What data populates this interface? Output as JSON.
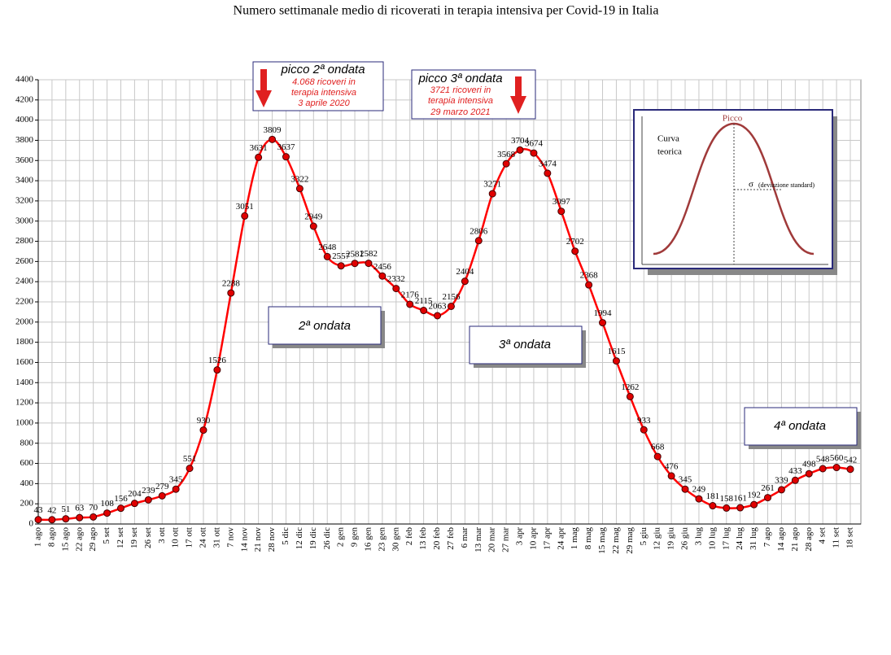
{
  "chart_data": {
    "type": "line",
    "title": "Numero settimanale medio di ricoverati in terapia intensiva per Covid-19 in Italia",
    "categories": [
      "1 ago",
      "8 ago",
      "15 ago",
      "22 ago",
      "29 ago",
      "5 set",
      "12 set",
      "19 set",
      "26 set",
      "3 ott",
      "10 ott",
      "17 ott",
      "24 ott",
      "31 ott",
      "7 nov",
      "14 nov",
      "21 nov",
      "28 nov",
      "5 dic",
      "12 dic",
      "19 dic",
      "26 dic",
      "2 gen",
      "9 gen",
      "16 gen",
      "23 gen",
      "30 gen",
      "2 feb",
      "13 feb",
      "20 feb",
      "27 feb",
      "6 mar",
      "13 mar",
      "20 mar",
      "27 mar",
      "3 apr",
      "10 apr",
      "17 apr",
      "24 apr",
      "1 mag",
      "8 mag",
      "15 mag",
      "22 mag",
      "29 mag",
      "5 giu",
      "12 giu",
      "19 giu",
      "26 giu",
      "3 lug",
      "10 lug",
      "17 lug",
      "24 lug",
      "31 lug",
      "7 ago",
      "14 ago",
      "21 ago",
      "28 ago",
      "4 set",
      "11 set",
      "18 set"
    ],
    "values": [
      43,
      42,
      51,
      63,
      70,
      108,
      156,
      204,
      239,
      279,
      345,
      551,
      930,
      1526,
      2288,
      3051,
      3631,
      3809,
      3637,
      3322,
      2949,
      2648,
      2557,
      2581,
      2582,
      2456,
      2332,
      2176,
      2115,
      2063,
      2156,
      2404,
      2806,
      3271,
      3568,
      3704,
      3674,
      3474,
      3097,
      2702,
      2368,
      1994,
      1615,
      1262,
      933,
      668,
      476,
      345,
      249,
      181,
      158,
      161,
      192,
      261,
      339,
      433,
      498,
      548,
      560,
      542
    ],
    "color": "#ff0000",
    "marker_color": "#e00000",
    "ylim": [
      0,
      4400
    ],
    "yticks": [
      0,
      200,
      400,
      600,
      800,
      1000,
      1200,
      1400,
      1600,
      1800,
      2000,
      2200,
      2400,
      2600,
      2800,
      3000,
      3200,
      3400,
      3600,
      3800,
      4000,
      4200,
      4400
    ],
    "grid": true,
    "peak_notes": [
      {
        "title": "picco 2ª ondata",
        "lines": [
          "4.068 ricoveri in",
          "terapia intensiva",
          "3 aprile 2020"
        ]
      },
      {
        "title": "picco 3ª ondata",
        "lines": [
          "3721 ricoveri in",
          "terapia intensiva",
          "29 marzo 2021"
        ]
      }
    ],
    "wave_labels": [
      "2ª ondata",
      "3ª ondata",
      "4ª ondata"
    ],
    "inset": {
      "peak": "Picco",
      "curve": [
        "Curva",
        "teorica"
      ],
      "sigma": "σ",
      "sigma_note": "(deviazione standard)"
    }
  }
}
